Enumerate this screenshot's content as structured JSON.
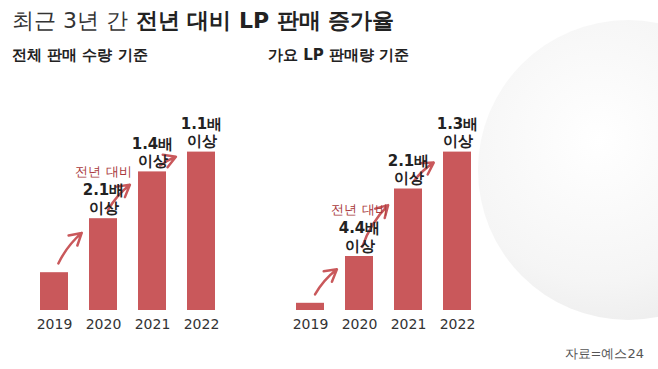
{
  "title": [
    "최근 3년 간",
    "전년 대비 LP 판매 증가율"
  ],
  "source": "자료=예스24",
  "chart_data": [
    {
      "type": "bar",
      "title": "전체 판매 수량 기준",
      "categories": [
        "2019",
        "2020",
        "2021",
        "2022"
      ],
      "values": [
        42,
        102,
        154,
        176
      ],
      "color": "#c9585b",
      "ylim": [
        0,
        180
      ],
      "tick_labels": "x",
      "annotations": [
        {
          "category": "2020",
          "prefix": "전년 대비",
          "lines": [
            "2.1배",
            "이상"
          ]
        },
        {
          "category": "2021",
          "lines": [
            "1.4배",
            "이상"
          ]
        },
        {
          "category": "2022",
          "lines": [
            "1.1배",
            "이상"
          ]
        }
      ]
    },
    {
      "type": "bar",
      "title": "가요 LP 판매량 기준",
      "categories": [
        "2019",
        "2020",
        "2021",
        "2022"
      ],
      "values": [
        8,
        60,
        135,
        176
      ],
      "color": "#c9585b",
      "ylim": [
        0,
        180
      ],
      "tick_labels": "x",
      "annotations": [
        {
          "category": "2020",
          "prefix": "전년 대비",
          "lines": [
            "4.4배",
            "이상"
          ]
        },
        {
          "category": "2021",
          "lines": [
            "2.1배",
            "이상"
          ]
        },
        {
          "category": "2022",
          "lines": [
            "1.3배",
            "이상"
          ]
        }
      ]
    }
  ]
}
